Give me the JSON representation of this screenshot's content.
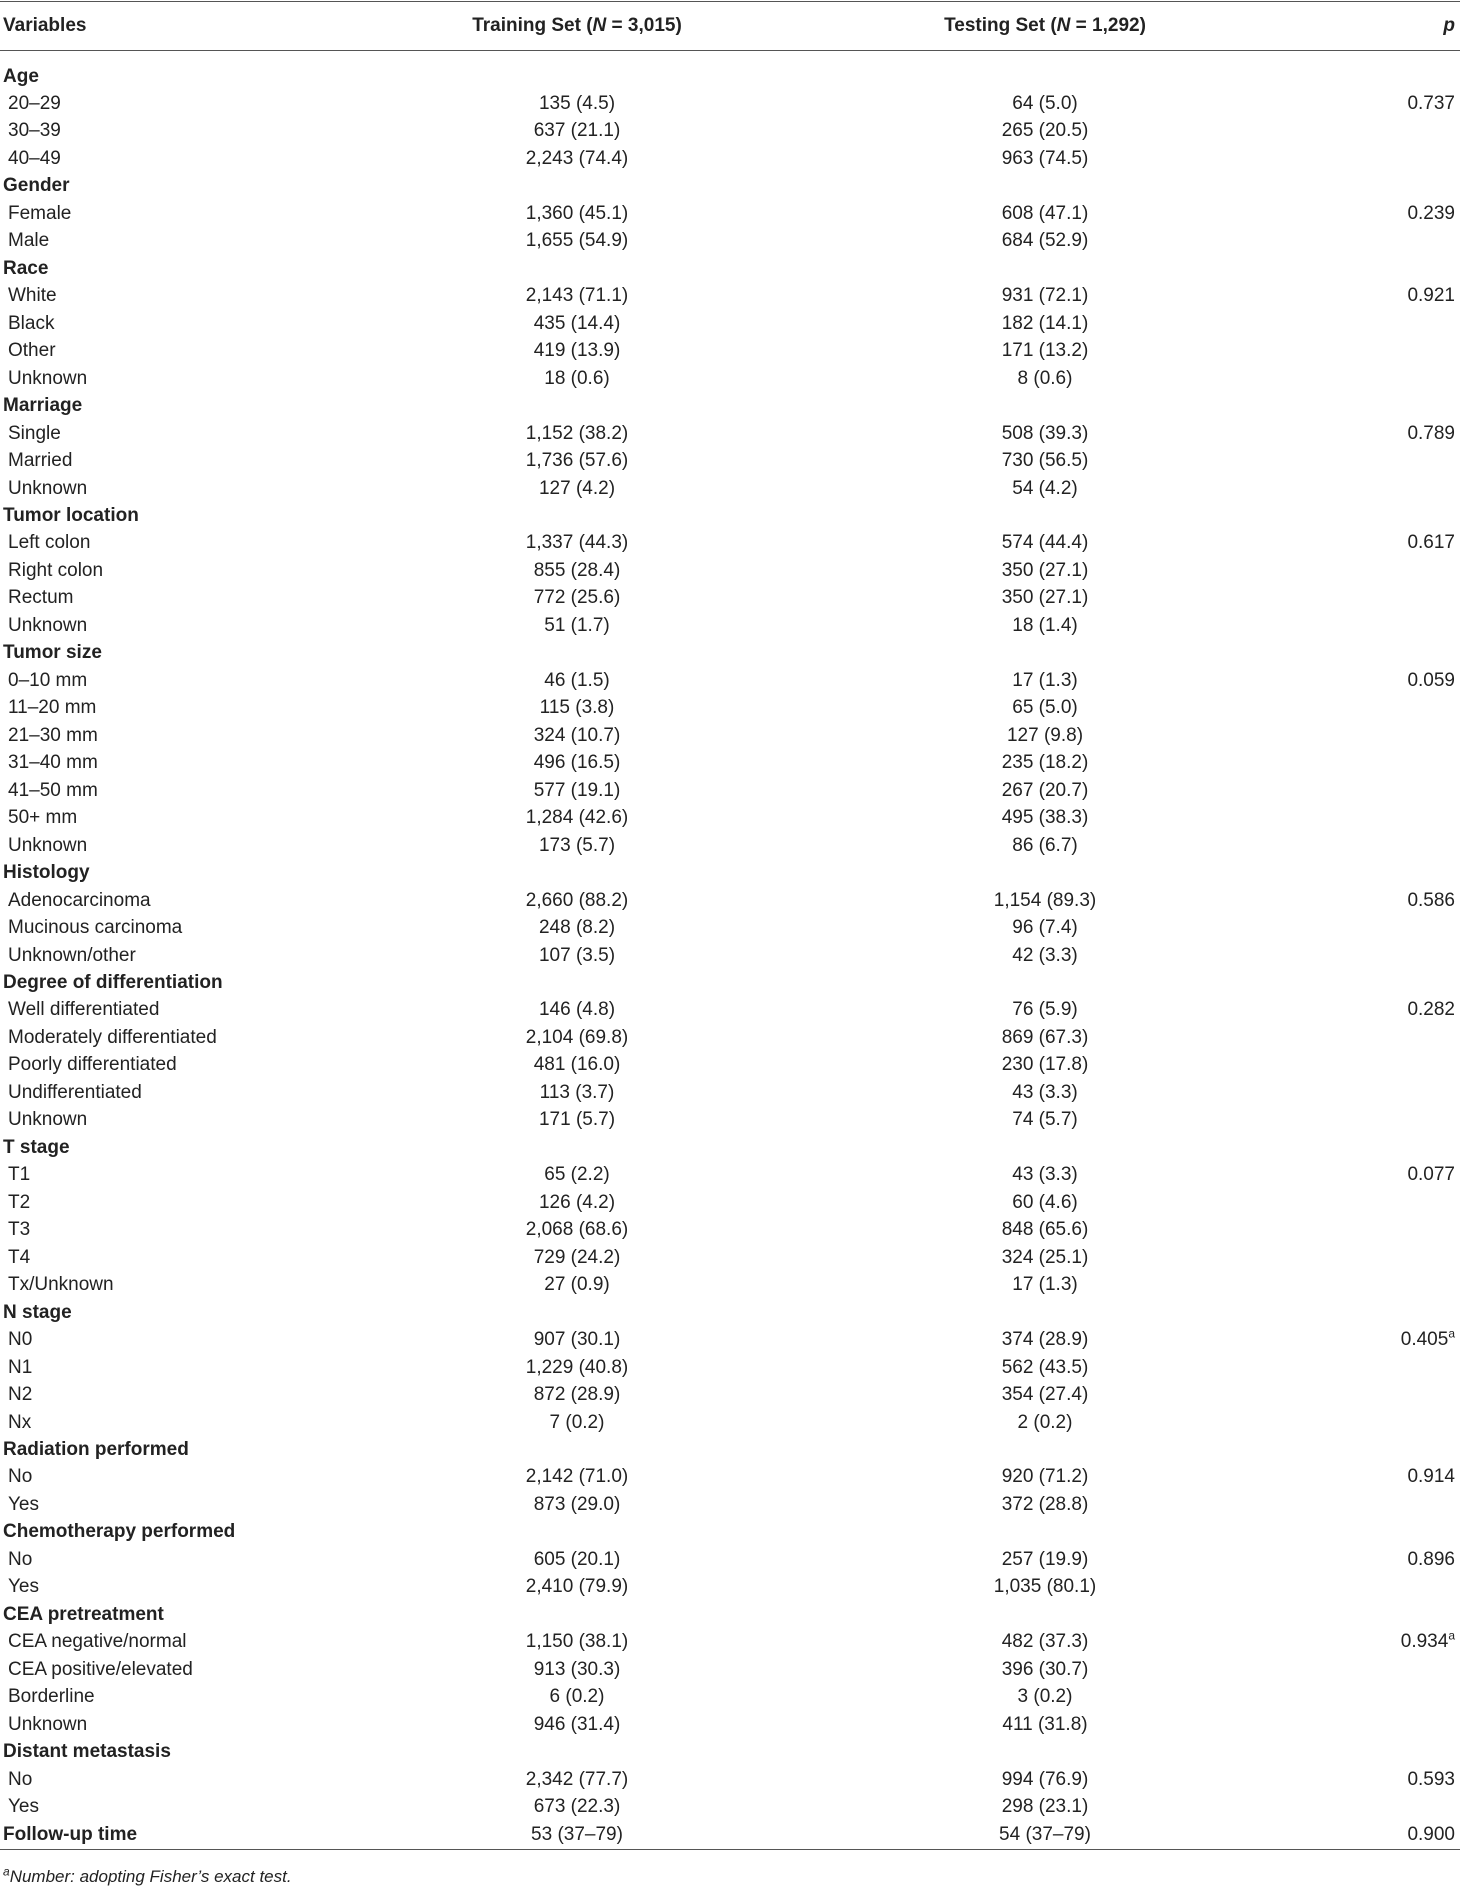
{
  "table": {
    "header": [
      [
        "Variables"
      ],
      [
        "Training Set (",
        "N",
        " = 3,015)"
      ],
      [
        "Testing Set (",
        "N",
        " = 1,292)"
      ],
      [
        "p"
      ]
    ],
    "groups": [
      {
        "label": "Age",
        "rows": [
          [
            "20–29",
            "135 (4.5)",
            "64 (5.0)",
            "0.737"
          ],
          [
            "30–39",
            "637 (21.1)",
            "265 (20.5)"
          ],
          [
            "40–49",
            "2,243 (74.4)",
            "963 (74.5)"
          ]
        ]
      },
      {
        "label": "Gender",
        "rows": [
          [
            "Female",
            "1,360 (45.1)",
            "608 (47.1)",
            "0.239"
          ],
          [
            "Male",
            "1,655 (54.9)",
            "684 (52.9)"
          ]
        ]
      },
      {
        "label": "Race",
        "rows": [
          [
            "White",
            "2,143 (71.1)",
            "931 (72.1)",
            "0.921"
          ],
          [
            "Black",
            "435 (14.4)",
            "182 (14.1)"
          ],
          [
            "Other",
            "419 (13.9)",
            "171 (13.2)"
          ],
          [
            "Unknown",
            "18 (0.6)",
            "8 (0.6)"
          ]
        ]
      },
      {
        "label": "Marriage",
        "rows": [
          [
            "Single",
            "1,152 (38.2)",
            "508 (39.3)",
            "0.789"
          ],
          [
            "Married",
            "1,736 (57.6)",
            "730 (56.5)"
          ],
          [
            "Unknown",
            "127 (4.2)",
            "54 (4.2)"
          ]
        ]
      },
      {
        "label": "Tumor location",
        "rows": [
          [
            "Left colon",
            "1,337 (44.3)",
            "574 (44.4)",
            "0.617"
          ],
          [
            "Right colon",
            "855 (28.4)",
            "350 (27.1)"
          ],
          [
            "Rectum",
            "772 (25.6)",
            "350 (27.1)"
          ],
          [
            "Unknown",
            "51 (1.7)",
            "18 (1.4)"
          ]
        ]
      },
      {
        "label": "Tumor size",
        "rows": [
          [
            "0–10 mm",
            "46 (1.5)",
            "17 (1.3)",
            "0.059"
          ],
          [
            "11–20 mm",
            "115 (3.8)",
            "65 (5.0)"
          ],
          [
            "21–30 mm",
            "324 (10.7)",
            "127 (9.8)"
          ],
          [
            "31–40 mm",
            "496 (16.5)",
            "235 (18.2)"
          ],
          [
            "41–50 mm",
            "577 (19.1)",
            "267 (20.7)"
          ],
          [
            "50+ mm",
            "1,284 (42.6)",
            "495 (38.3)"
          ],
          [
            "Unknown",
            "173 (5.7)",
            "86 (6.7)"
          ]
        ]
      },
      {
        "label": "Histology",
        "rows": [
          [
            "Adenocarcinoma",
            "2,660 (88.2)",
            "1,154 (89.3)",
            "0.586"
          ],
          [
            "Mucinous carcinoma",
            "248 (8.2)",
            "96 (7.4)"
          ],
          [
            "Unknown/other",
            "107 (3.5)",
            "42 (3.3)"
          ]
        ]
      },
      {
        "label": "Degree of differentiation",
        "rows": [
          [
            "Well differentiated",
            "146 (4.8)",
            "76 (5.9)",
            "0.282"
          ],
          [
            "Moderately differentiated",
            "2,104 (69.8)",
            "869 (67.3)"
          ],
          [
            "Poorly differentiated",
            "481 (16.0)",
            "230 (17.8)"
          ],
          [
            "Undifferentiated",
            "113 (3.7)",
            "43 (3.3)"
          ],
          [
            "Unknown",
            "171 (5.7)",
            "74 (5.7)"
          ]
        ]
      },
      {
        "label": "T stage",
        "rows": [
          [
            "T1",
            "65 (2.2)",
            "43 (3.3)",
            "0.077"
          ],
          [
            "T2",
            "126 (4.2)",
            "60 (4.6)"
          ],
          [
            "T3",
            "2,068 (68.6)",
            "848 (65.6)"
          ],
          [
            "T4",
            "729 (24.2)",
            "324 (25.1)"
          ],
          [
            "Tx/Unknown",
            "27 (0.9)",
            "17 (1.3)"
          ]
        ]
      },
      {
        "label": "N stage",
        "rows": [
          [
            "N0",
            "907 (30.1)",
            "374 (28.9)",
            {
              "value": "0.405",
              "note": "a"
            }
          ],
          [
            "N1",
            "1,229 (40.8)",
            "562 (43.5)"
          ],
          [
            "N2",
            "872 (28.9)",
            "354 (27.4)"
          ],
          [
            "Nx",
            "7 (0.2)",
            "2 (0.2)"
          ]
        ]
      },
      {
        "label": "Radiation performed",
        "rows": [
          [
            "No",
            "2,142 (71.0)",
            "920 (71.2)",
            "0.914"
          ],
          [
            "Yes",
            "873 (29.0)",
            "372 (28.8)"
          ]
        ]
      },
      {
        "label": "Chemotherapy performed",
        "rows": [
          [
            "No",
            "605 (20.1)",
            "257 (19.9)",
            "0.896"
          ],
          [
            "Yes",
            "2,410 (79.9)",
            "1,035 (80.1)"
          ]
        ]
      },
      {
        "label": "CEA pretreatment",
        "rows": [
          [
            "CEA negative/normal",
            "1,150 (38.1)",
            "482 (37.3)",
            {
              "value": "0.934",
              "note": "a"
            }
          ],
          [
            "CEA positive/elevated",
            "913 (30.3)",
            "396 (30.7)"
          ],
          [
            "Borderline",
            "6 (0.2)",
            "3 (0.2)"
          ],
          [
            "Unknown",
            "946 (31.4)",
            "411 (31.8)"
          ]
        ]
      },
      {
        "label": "Distant metastasis",
        "rows": [
          [
            "No",
            "2,342 (77.7)",
            "994 (76.9)",
            "0.593"
          ],
          [
            "Yes",
            "673 (22.3)",
            "298 (23.1)"
          ]
        ]
      },
      {
        "label": "Follow-up time",
        "values": [
          "53 (37–79)",
          "54 (37–79)",
          "0.900"
        ]
      }
    ]
  },
  "footnote": {
    "mark": "a",
    "text": "Number: adopting Fisher’s exact test."
  }
}
